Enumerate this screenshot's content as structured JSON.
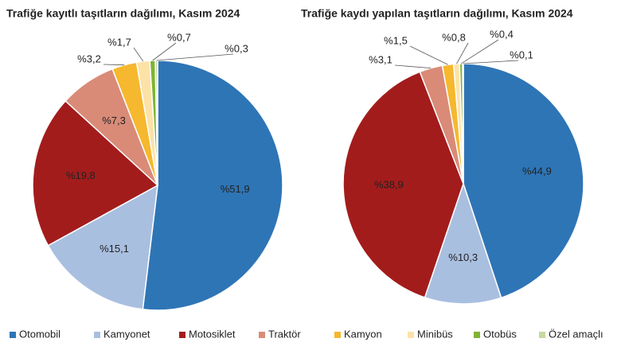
{
  "chart_data": [
    {
      "type": "pie",
      "title": "Trafiğe kayıtlı taşıtların dağılımı, Kasım 2024",
      "categories": [
        "Otomobil",
        "Kamyonet",
        "Motosiklet",
        "Traktör",
        "Kamyon",
        "Minibüs",
        "Otobüs",
        "Özel amaçlı"
      ],
      "values": [
        51.9,
        15.1,
        19.8,
        7.3,
        3.2,
        1.7,
        0.7,
        0.3
      ],
      "value_labels": [
        "%51,9",
        "%15,1",
        "%19,8",
        "%7,3",
        "%3,2",
        "%1,7",
        "%0,7",
        "%0,3"
      ],
      "colors": [
        "#2e75b6",
        "#a9bfe0",
        "#a31c1c",
        "#d98b78",
        "#f5b82e",
        "#fde2a7",
        "#7fb334",
        "#c6d9a0"
      ]
    },
    {
      "type": "pie",
      "title": "Trafiğe kaydı yapılan taşıtların dağılımı, Kasım 2024",
      "categories": [
        "Otomobil",
        "Kamyonet",
        "Motosiklet",
        "Traktör",
        "Kamyon",
        "Minibüs",
        "Otobüs",
        "Özel amaçlı"
      ],
      "values": [
        44.9,
        10.3,
        38.9,
        3.1,
        1.5,
        0.8,
        0.4,
        0.1
      ],
      "value_labels": [
        "%44,9",
        "%10,3",
        "%38,9",
        "%3,1",
        "%1,5",
        "%0,8",
        "%0,4",
        "%0,1"
      ],
      "colors": [
        "#2e75b6",
        "#a9bfe0",
        "#a31c1c",
        "#d98b78",
        "#f5b82e",
        "#fde2a7",
        "#7fb334",
        "#c6d9a0"
      ]
    }
  ]
}
